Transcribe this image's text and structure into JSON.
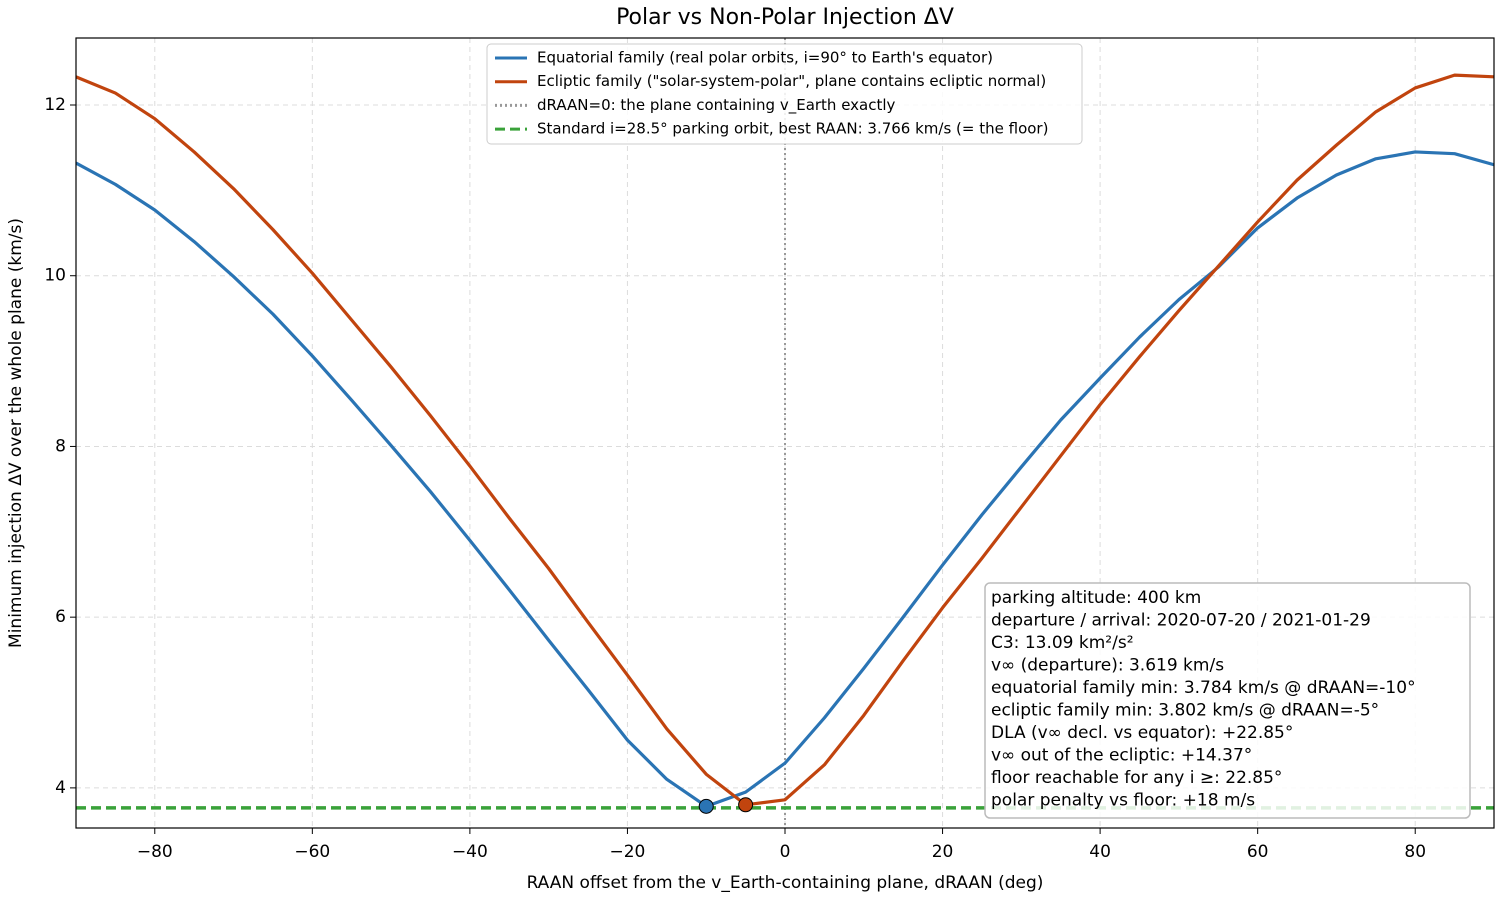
{
  "chart_data": {
    "type": "line",
    "title": "Polar vs Non-Polar Injection ΔV",
    "x_label": "RAAN offset from the v_Earth-containing plane, dRAAN (deg)",
    "y_label": "Minimum injection ΔV over the whole plane (km/s)",
    "x": [
      -90,
      -85,
      -80,
      -75,
      -70,
      -65,
      -60,
      -55,
      -50,
      -45,
      -40,
      -35,
      -30,
      -25,
      -20,
      -15,
      -10,
      -5,
      0,
      5,
      10,
      15,
      20,
      25,
      30,
      35,
      40,
      45,
      50,
      55,
      60,
      65,
      70,
      75,
      80,
      85,
      90
    ],
    "series": [
      {
        "name": "Equatorial family (real polar orbits, i=90° to Earth's equator)",
        "color": "#2a74b4",
        "values": [
          11.32,
          11.07,
          10.77,
          10.4,
          9.99,
          9.55,
          9.06,
          8.54,
          8.01,
          7.47,
          6.9,
          6.32,
          5.73,
          5.15,
          4.56,
          4.1,
          3.784,
          3.95,
          4.29,
          4.82,
          5.4,
          6.0,
          6.61,
          7.2,
          7.76,
          8.31,
          8.8,
          9.28,
          9.72,
          10.1,
          10.56,
          10.91,
          11.18,
          11.37,
          11.45,
          11.43,
          11.3
        ]
      },
      {
        "name": "Ecliptic family (\"solar-system-polar\", plane contains ecliptic normal)",
        "color": "#c1440e",
        "values": [
          12.33,
          12.14,
          11.84,
          11.45,
          11.02,
          10.54,
          10.03,
          9.48,
          8.93,
          8.36,
          7.77,
          7.16,
          6.57,
          5.94,
          5.32,
          4.69,
          4.16,
          3.802,
          3.86,
          4.27,
          4.85,
          5.49,
          6.11,
          6.69,
          7.29,
          7.89,
          8.49,
          9.05,
          9.59,
          10.11,
          10.63,
          11.12,
          11.53,
          11.92,
          12.2,
          12.35,
          12.33
        ]
      }
    ],
    "reference_lines": [
      {
        "name": "dRAAN=0: the plane containing v_Earth exactly",
        "orientation": "vertical",
        "value": 0,
        "color": "#999999",
        "style": "dotted"
      },
      {
        "name": "Standard i=28.5° parking orbit, best RAAN: 3.766 km/s (= the floor)",
        "orientation": "horizontal",
        "value": 3.766,
        "color": "#3aa23a",
        "style": "dashed"
      }
    ],
    "markers": [
      {
        "x": -10,
        "y": 3.784,
        "color": "#2a74b4"
      },
      {
        "x": -5,
        "y": 3.802,
        "color": "#c1440e"
      }
    ],
    "annotation": [
      "parking altitude: 400 km",
      "departure / arrival: 2020-07-20 / 2021-01-29",
      "C3: 13.09 km²/s²",
      "v∞ (departure): 3.619 km/s",
      "equatorial family min: 3.784 km/s @ dRAAN=-10°",
      "ecliptic family min: 3.802 km/s @ dRAAN=-5°",
      "DLA (v∞ decl. vs equator): +22.85°",
      "v∞ out of the ecliptic: +14.37°",
      "floor reachable for any i ≥: 22.85°",
      "polar penalty vs floor: +18 m/s"
    ],
    "xlim": [
      -90,
      90
    ],
    "ylim": [
      3.53,
      12.785
    ],
    "xticks": [
      {
        "value": -80,
        "label": "−80"
      },
      {
        "value": -60,
        "label": "−60"
      },
      {
        "value": -40,
        "label": "−40"
      },
      {
        "value": -20,
        "label": "−20"
      },
      0,
      20,
      40,
      60,
      80
    ],
    "yticks": [
      4,
      6,
      8,
      10,
      12
    ],
    "grid": true,
    "legend": "upper center"
  }
}
